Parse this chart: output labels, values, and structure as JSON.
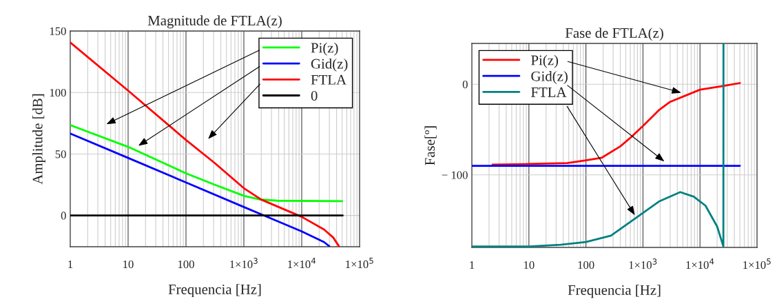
{
  "chart_data": [
    {
      "type": "line",
      "title": "Magnitude de FTLA(z)",
      "xlabel": "Frequencia [Hz]",
      "ylabel": "Amplitude [dB]",
      "log": "x",
      "grid": true,
      "legend": "top right",
      "line_style": "solid",
      "marker": "none",
      "xlim": [
        1,
        100000
      ],
      "ylim": [
        -25.4,
        150
      ],
      "xticks": [
        1,
        10,
        100,
        {
          "value": 1000,
          "label": "1×10$^{3}$"
        },
        {
          "value": 10000,
          "label": "1×10$^{4}$"
        },
        {
          "value": 100000,
          "label": "1×10$^{5}$"
        }
      ],
      "yticks": [
        0,
        50,
        100,
        150
      ],
      "series": [
        {
          "name": "Pi(z)",
          "color": "#00ff00",
          "x": [
            1,
            10,
            100,
            313,
            1000,
            1870,
            3900,
            50000
          ],
          "values": [
            73.5,
            55.8,
            34.3,
            25,
            16,
            13,
            12,
            11.6
          ]
        },
        {
          "name": "Gid(z)",
          "color": "#0000ff",
          "x": [
            1,
            10,
            100,
            1000,
            2240,
            10000,
            24300,
            30000
          ],
          "values": [
            66.6,
            46.8,
            26.9,
            6.9,
            0,
            -12.9,
            -21.6,
            -25
          ]
        },
        {
          "name": "FTLA",
          "color": "#ff0000",
          "x": [
            1,
            10,
            100,
            313,
            1000,
            2000,
            10000,
            24300,
            35000,
            44000
          ],
          "values": [
            140.7,
            101.5,
            61.4,
            42.7,
            22.2,
            12.9,
            -1.1,
            -11.4,
            -17.9,
            -25
          ]
        },
        {
          "name": "0",
          "color": "#000000",
          "x": [
            1,
            51000
          ],
          "values": [
            0,
            0
          ]
        }
      ]
    },
    {
      "type": "line",
      "title": "Fase de FTLA(z)",
      "xlabel": "Frequencia [Hz]",
      "ylabel": "Fase[º]",
      "log": "x",
      "grid": true,
      "legend": "top left",
      "line_style": "solid",
      "marker": "none",
      "xlim": [
        1,
        100000
      ],
      "ylim": [
        -180,
        45
      ],
      "xticks": [
        1,
        10,
        100,
        {
          "value": 1000,
          "label": "1×10$^{3}$"
        },
        {
          "value": 10000,
          "label": "1×10$^{4}$"
        },
        {
          "value": 100000,
          "label": "1×10$^{5}$"
        }
      ],
      "yticks": [
        0,
        {
          "value": -100,
          "label": "− 100"
        }
      ],
      "series": [
        {
          "name": "Pi(z)",
          "color": "#ff0000",
          "x": [
            2.3,
            10,
            47,
            100,
            190,
            400,
            630,
            1000,
            1950,
            3000,
            10000,
            26000,
            50000
          ],
          "values": [
            -88.7,
            -88,
            -87,
            -84,
            -81,
            -68.5,
            -58,
            -46,
            -28,
            -19.4,
            -6,
            -1.8,
            1.3
          ]
        },
        {
          "name": "Gid(z)",
          "color": "#0000ff",
          "x": [
            1,
            50000
          ],
          "values": [
            -90,
            -90
          ]
        },
        {
          "name": "FTLA",
          "color": "#008080",
          "x": [
            1,
            10,
            36,
            100,
            275,
            770,
            1950,
            4500,
            7800,
            12500,
            20000,
            25700,
            25800
          ],
          "values": [
            -179,
            -179,
            -177,
            -174,
            -167,
            -147,
            -129,
            -119,
            -124,
            -134,
            -157,
            -179,
            45
          ]
        }
      ]
    }
  ]
}
